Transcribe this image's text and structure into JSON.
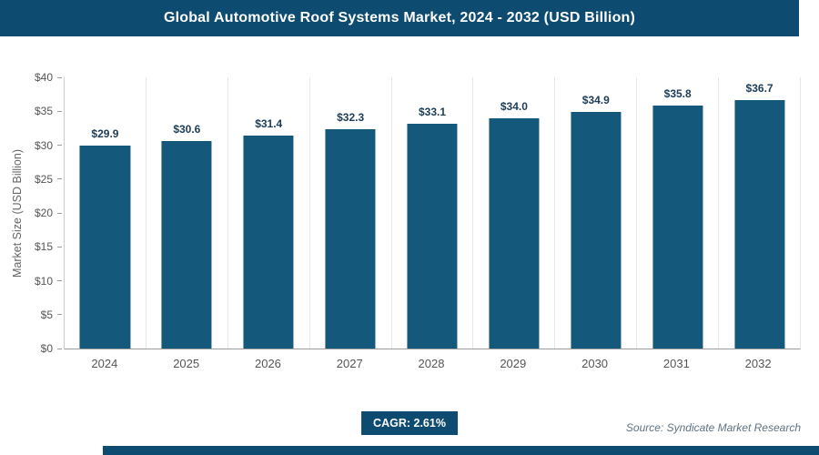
{
  "header": {
    "title": "Global Automotive Roof Systems Market, 2024 - 2032 (USD Billion)"
  },
  "chart_data": {
    "type": "bar",
    "title": "Global Automotive Roof Systems Market, 2024 - 2032 (USD Billion)",
    "categories": [
      "2024",
      "2025",
      "2026",
      "2027",
      "2028",
      "2029",
      "2030",
      "2031",
      "2032"
    ],
    "values": [
      29.9,
      30.6,
      31.4,
      32.3,
      33.1,
      34.0,
      34.9,
      35.8,
      36.7
    ],
    "bar_labels": [
      "$29.9",
      "$30.6",
      "$31.4",
      "$32.3",
      "$33.1",
      "$34.0",
      "$34.9",
      "$35.8",
      "$36.7"
    ],
    "xlabel": "",
    "ylabel": "Market Size (USD Billion)",
    "ylim": [
      0,
      40
    ],
    "ytick_values": [
      0,
      5,
      10,
      15,
      20,
      25,
      30,
      35,
      40
    ],
    "yticks": [
      "$0",
      "$5",
      "$10",
      "$15",
      "$20",
      "$25",
      "$30",
      "$35",
      "$40"
    ],
    "grid": "vertical",
    "legend": "none",
    "bar_color": "#14597c"
  },
  "footer": {
    "cagr_label": "CAGR: 2.61%",
    "source": "Source: Syndicate Market Research"
  },
  "colors": {
    "accent": "#0d4b70",
    "bar": "#14597c",
    "gridline": "#e4e6e8"
  }
}
